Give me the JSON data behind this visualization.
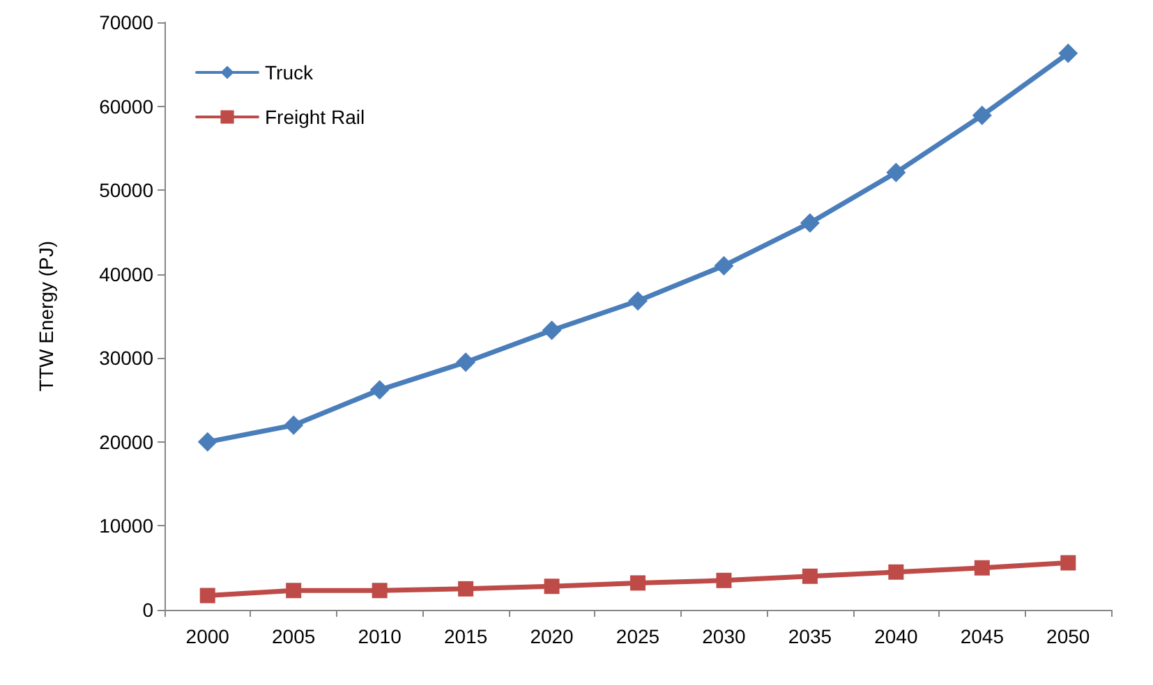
{
  "chart_data": {
    "type": "line",
    "ylabel": "TTW Energy (PJ)",
    "categories": [
      "2000",
      "2005",
      "2010",
      "2015",
      "2020",
      "2025",
      "2030",
      "2035",
      "2040",
      "2045",
      "2050"
    ],
    "series": [
      {
        "name": "Truck",
        "color": "#4a7ebb",
        "marker": "diamond",
        "values": [
          20000,
          22000,
          26200,
          29500,
          33300,
          36800,
          41000,
          46100,
          52100,
          58900,
          66300
        ]
      },
      {
        "name": "Freight Rail",
        "color": "#be4b48",
        "marker": "square",
        "values": [
          1700,
          2300,
          2300,
          2500,
          2800,
          3200,
          3500,
          4000,
          4500,
          5000,
          5600
        ]
      }
    ],
    "ylim": [
      0,
      70000
    ],
    "yticks": [
      0,
      10000,
      20000,
      30000,
      40000,
      50000,
      60000,
      70000
    ],
    "grid": false,
    "legend": "top left",
    "line_style": "solid"
  }
}
